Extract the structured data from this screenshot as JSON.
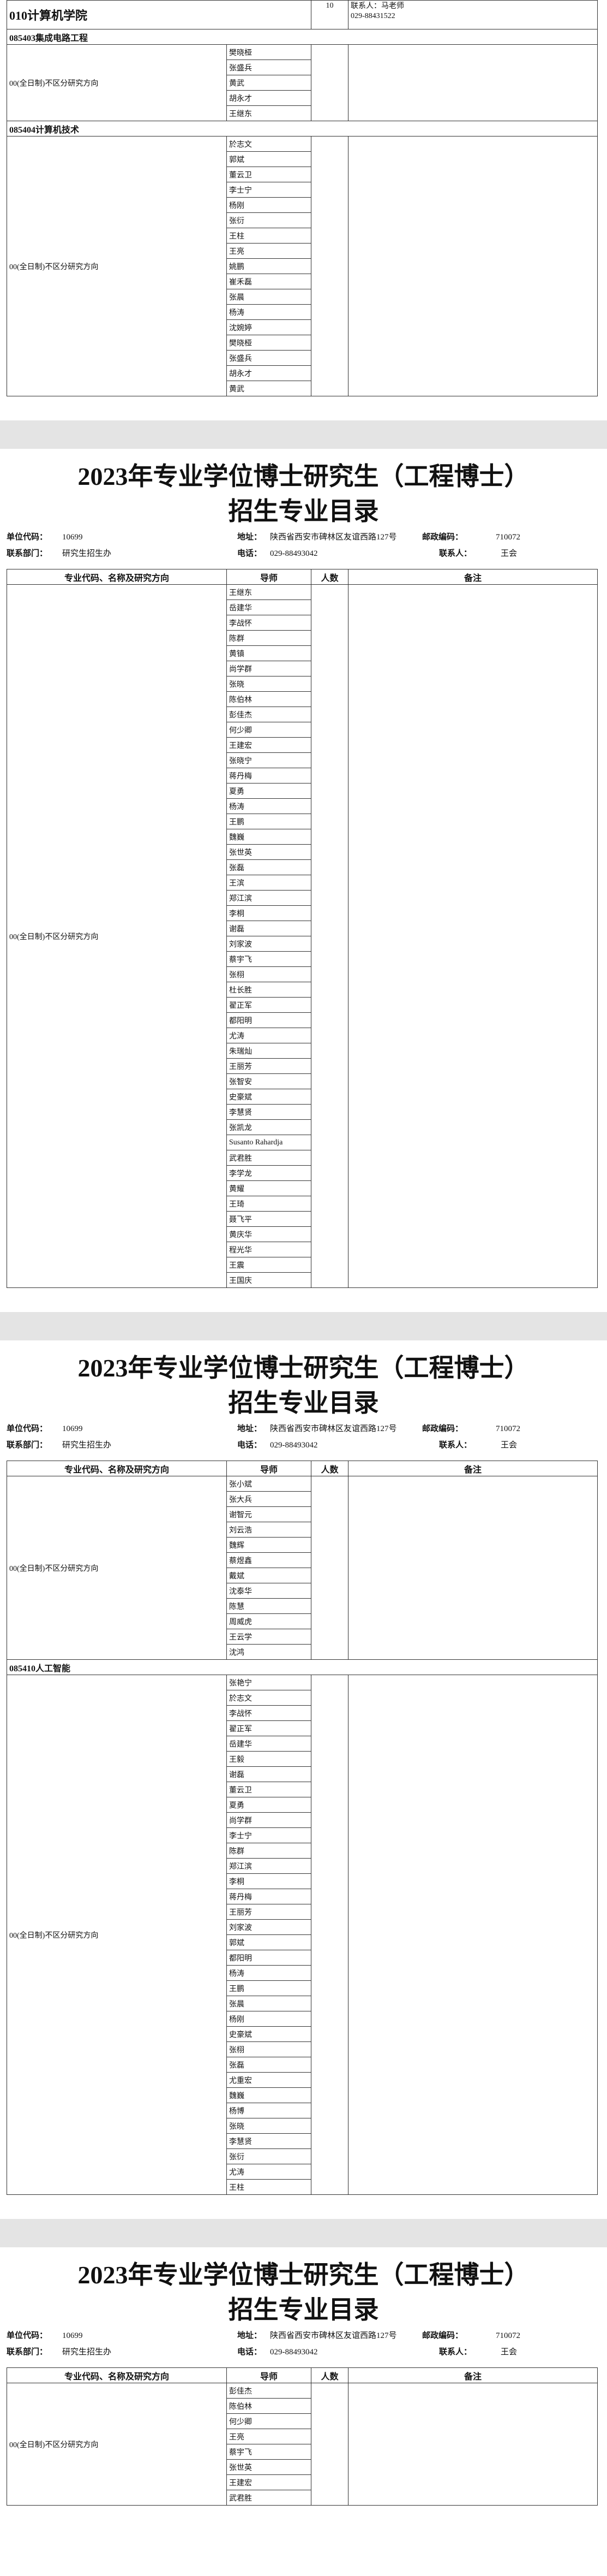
{
  "fragment": {
    "college": "010计算机学院",
    "count": 10,
    "contact": "联系人：马老师",
    "phone": "029-88431522",
    "sections": [
      {
        "major": "085403集成电路工程",
        "direction": "00(全日制)不区分研究方向",
        "advisors": [
          "樊晓桠",
          "张盛兵",
          "黄武",
          "胡永才",
          "王继东"
        ]
      },
      {
        "major": "085404计算机技术",
        "direction": "00(全日制)不区分研究方向",
        "advisors": [
          "於志文",
          "郭斌",
          "董云卫",
          "李士宁",
          "杨刚",
          "张衍",
          "王柱",
          "王亮",
          "姚鹏",
          "崔禾磊",
          "张晨",
          "杨涛",
          "沈婉婷",
          "樊晓桠",
          "张盛兵",
          "胡永才",
          "黄武"
        ]
      }
    ]
  },
  "pages": [
    {
      "title_line1": "2023年专业学位博士研究生（工程博士）",
      "title_line2": "招生专业目录",
      "info": {
        "code_label": "单位代码：",
        "code": "10699",
        "address_label": "地址：",
        "address": "陕西省西安市碑林区友谊西路127号",
        "postcode_label": "邮政编码：",
        "postcode": "710072",
        "dept_label": "联系部门：",
        "dept": "研究生招生办",
        "phone_label": "电话：",
        "phone": "029-88493042",
        "contact_label": "联系人：",
        "contact": "王会"
      },
      "header": [
        "专业代码、名称及研究方向",
        "导师",
        "人数",
        "备注"
      ],
      "sections": [
        {
          "major": null,
          "direction": "00(全日制)不区分研究方向",
          "advisors": [
            "王继东",
            "岳建华",
            "李战怀",
            "陈群",
            "黄镇",
            "尚学群",
            "张晓",
            "陈伯林",
            "彭佳杰",
            "何少卿",
            "王建宏",
            "张晓宁",
            "蒋丹梅",
            "夏勇",
            "杨涛",
            "王鹏",
            "魏巍",
            "张世英",
            "张磊",
            "王滨",
            "郑江滨",
            "李桐",
            "谢磊",
            "刘家波",
            "蔡宇飞",
            "张栩",
            "杜长胜",
            "翟正军",
            "都阳明",
            "尤涛",
            "朱瑞灿",
            "王丽芳",
            "张智安",
            "史豪斌",
            "李慧贤",
            "张凯龙",
            "Susanto Rahardja",
            "武君胜",
            "李学龙",
            "黄耀",
            "王琦",
            "聂飞平",
            "黄庆华",
            "程光华",
            "王震",
            "王国庆"
          ]
        }
      ]
    },
    {
      "title_line1": "2023年专业学位博士研究生（工程博士）",
      "title_line2": "招生专业目录",
      "info": {
        "code_label": "单位代码：",
        "code": "10699",
        "address_label": "地址：",
        "address": "陕西省西安市碑林区友谊西路127号",
        "postcode_label": "邮政编码：",
        "postcode": "710072",
        "dept_label": "联系部门：",
        "dept": "研究生招生办",
        "phone_label": "电话：",
        "phone": "029-88493042",
        "contact_label": "联系人：",
        "contact": "王会"
      },
      "header": [
        "专业代码、名称及研究方向",
        "导师",
        "人数",
        "备注"
      ],
      "sections": [
        {
          "major": null,
          "direction": "00(全日制)不区分研究方向",
          "advisors": [
            "张小斌",
            "张大兵",
            "谢智元",
            "刘云浩",
            "魏辉",
            "蔡煜鑫",
            "戴斌",
            "沈泰华",
            "陈慧",
            "周威虎",
            "王云学",
            "沈鸿"
          ]
        },
        {
          "major": "085410人工智能",
          "direction": "00(全日制)不区分研究方向",
          "advisors": [
            "张艳宁",
            "於志文",
            "李战怀",
            "翟正军",
            "岳建华",
            "王毅",
            "谢磊",
            "董云卫",
            "夏勇",
            "尚学群",
            "李士宁",
            "陈群",
            "郑江滨",
            "李桐",
            "蒋丹梅",
            "王丽芳",
            "刘家波",
            "郭斌",
            "都阳明",
            "杨涛",
            "王鹏",
            "张晨",
            "杨刚",
            "史豪斌",
            "张栩",
            "张磊",
            "尤重宏",
            "魏巍",
            "杨博",
            "张晓",
            "李慧贤",
            "张衍",
            "尤涛",
            "王柱"
          ]
        }
      ]
    },
    {
      "title_line1": "2023年专业学位博士研究生（工程博士）",
      "title_line2": "招生专业目录",
      "info": {
        "code_label": "单位代码：",
        "code": "10699",
        "address_label": "地址：",
        "address": "陕西省西安市碑林区友谊西路127号",
        "postcode_label": "邮政编码：",
        "postcode": "710072",
        "dept_label": "联系部门：",
        "dept": "研究生招生办",
        "phone_label": "电话：",
        "phone": "029-88493042",
        "contact_label": "联系人：",
        "contact": "王会"
      },
      "header": [
        "专业代码、名称及研究方向",
        "导师",
        "人数",
        "备注"
      ],
      "sections": [
        {
          "major": null,
          "direction": "00(全日制)不区分研究方向",
          "advisors": [
            "彭佳杰",
            "陈伯林",
            "何少卿",
            "王亮",
            "蔡宇飞",
            "张世英",
            "王建宏",
            "武君胜"
          ]
        }
      ]
    }
  ]
}
